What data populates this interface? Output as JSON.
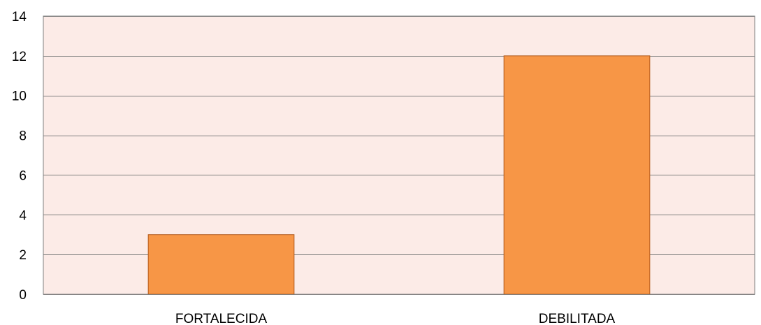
{
  "chart_data": {
    "type": "bar",
    "title": "",
    "xlabel": "",
    "ylabel": "",
    "categories": [
      "FORTALECIDA",
      "DEBILITADA"
    ],
    "series": [
      {
        "values": [
          3,
          12
        ]
      }
    ],
    "ylim": [
      0,
      14
    ],
    "yticks": [
      "0",
      "2",
      "4",
      "6",
      "8",
      "10",
      "12",
      "14"
    ],
    "grid": true,
    "legend": "none",
    "colors": {
      "plot_background": "#fcebe7",
      "bar_fill": "#f79646",
      "bar_stroke": "#b35a1c",
      "gridline": "#7f7f7f",
      "axis": "#7f7f7f"
    }
  }
}
